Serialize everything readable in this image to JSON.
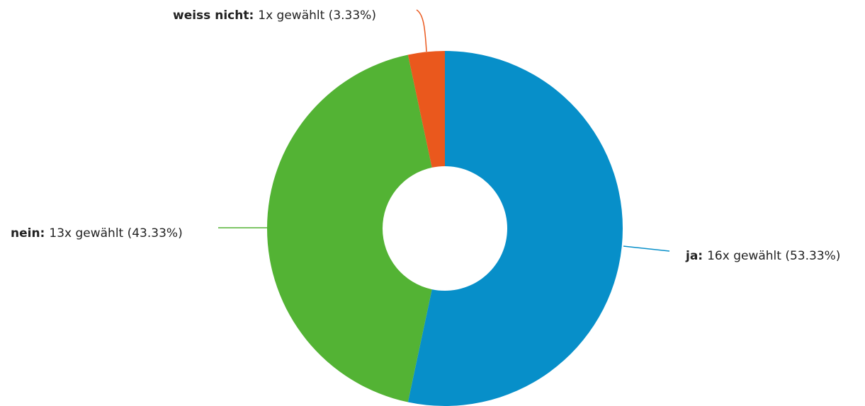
{
  "chart_data": {
    "type": "donut",
    "categories": [
      "ja:",
      "nein:",
      "weiss nicht:"
    ],
    "values": [
      16,
      13,
      1
    ],
    "value_labels": [
      "16x gewählt (53.33%)",
      "13x gewählt (43.33%)",
      "1x gewählt (3.33%)"
    ],
    "colors": [
      "#078fc9",
      "#53b334",
      "#ea581d"
    ]
  }
}
